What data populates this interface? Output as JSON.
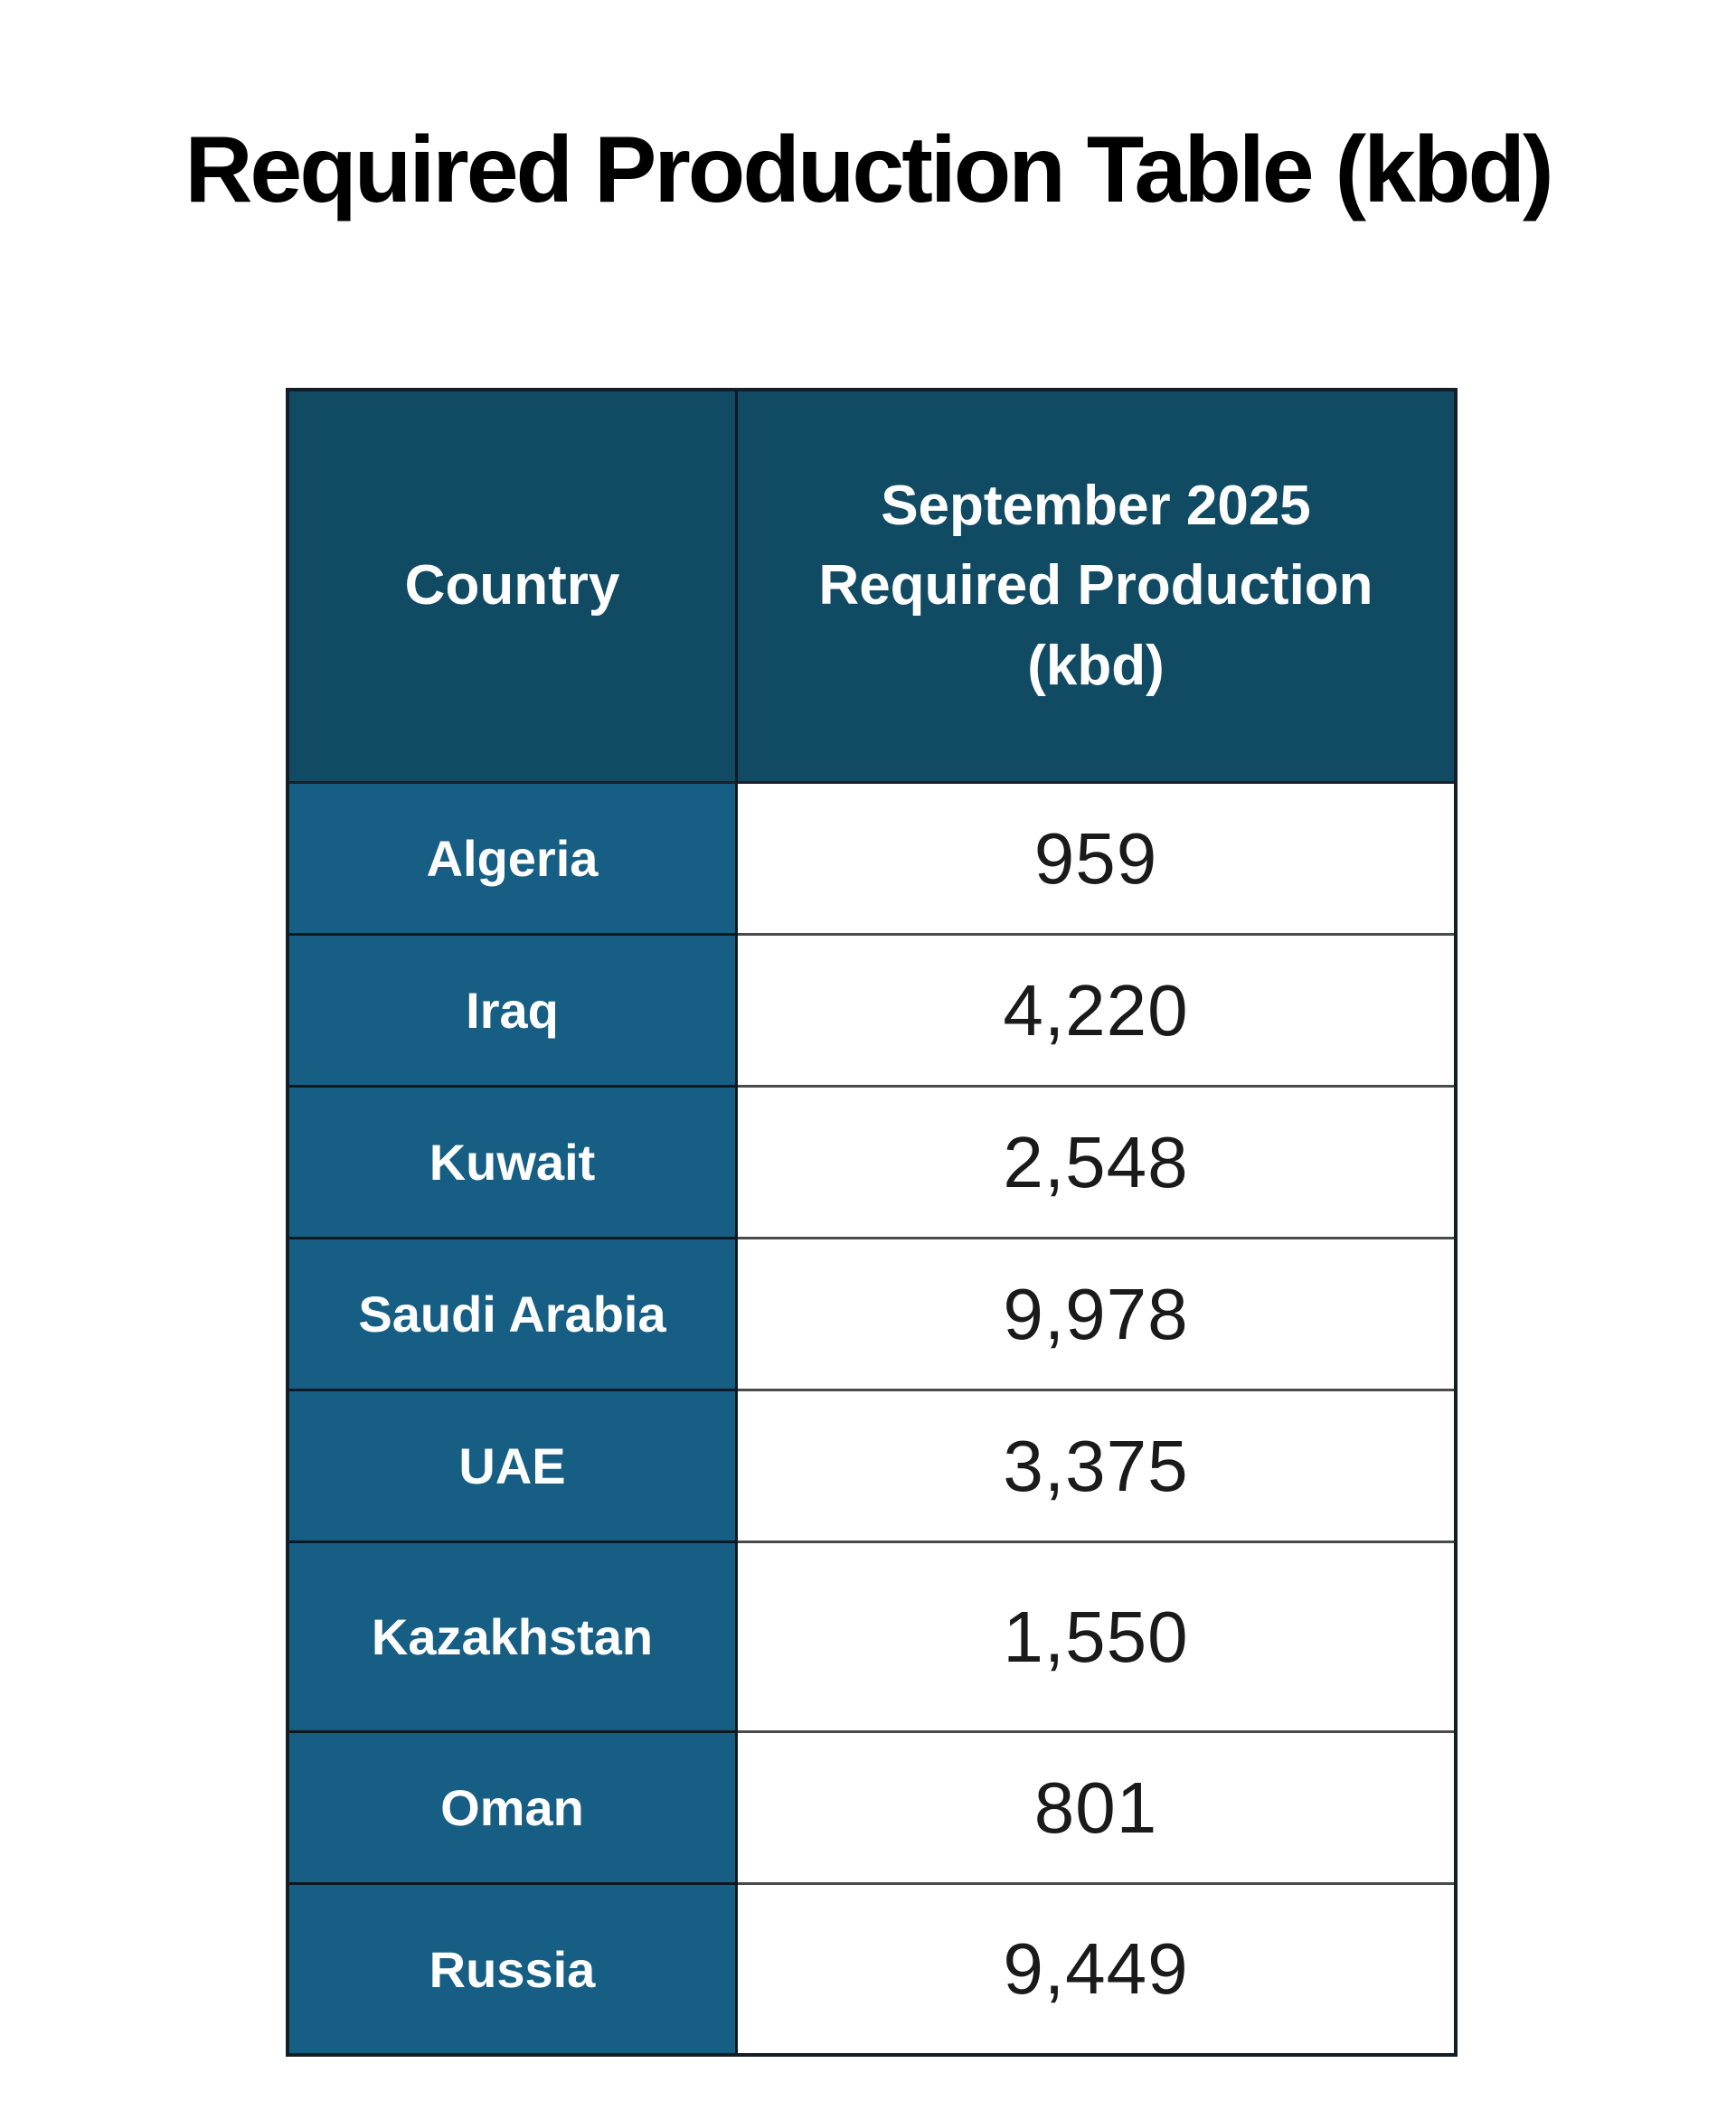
{
  "page": {
    "title": "Required Production Table (kbd)"
  },
  "table": {
    "header": {
      "country": "Country",
      "value": "September 2025 Required Production (kbd)"
    },
    "rows": [
      {
        "country": "Algeria",
        "value": "959"
      },
      {
        "country": "Iraq",
        "value": "4,220"
      },
      {
        "country": "Kuwait",
        "value": "2,548"
      },
      {
        "country": "Saudi Arabia",
        "value": "9,978"
      },
      {
        "country": "UAE",
        "value": "3,375"
      },
      {
        "country": "Kazakhstan",
        "value": "1,550"
      },
      {
        "country": "Oman",
        "value": "801"
      },
      {
        "country": "Russia",
        "value": "9,449"
      }
    ]
  },
  "colors": {
    "header_bg": "#114a63",
    "country_cell_bg": "#175e84",
    "value_cell_bg": "#ffffff",
    "outer_border": "#141e28",
    "white_row_divider": "#4a4a4a",
    "blue_row_divider": "#0c1822",
    "header_text": "#ffffff",
    "value_text": "#1a1a1a",
    "title_text": "#000000"
  },
  "chart_data": {
    "type": "table",
    "title": "Required Production Table (kbd)",
    "columns": [
      "Country",
      "September 2025 Required Production (kbd)"
    ],
    "categories": [
      "Algeria",
      "Iraq",
      "Kuwait",
      "Saudi Arabia",
      "UAE",
      "Kazakhstan",
      "Oman",
      "Russia"
    ],
    "values": [
      959,
      4220,
      2548,
      9978,
      3375,
      1550,
      801,
      9449
    ],
    "value_unit": "kbd"
  }
}
